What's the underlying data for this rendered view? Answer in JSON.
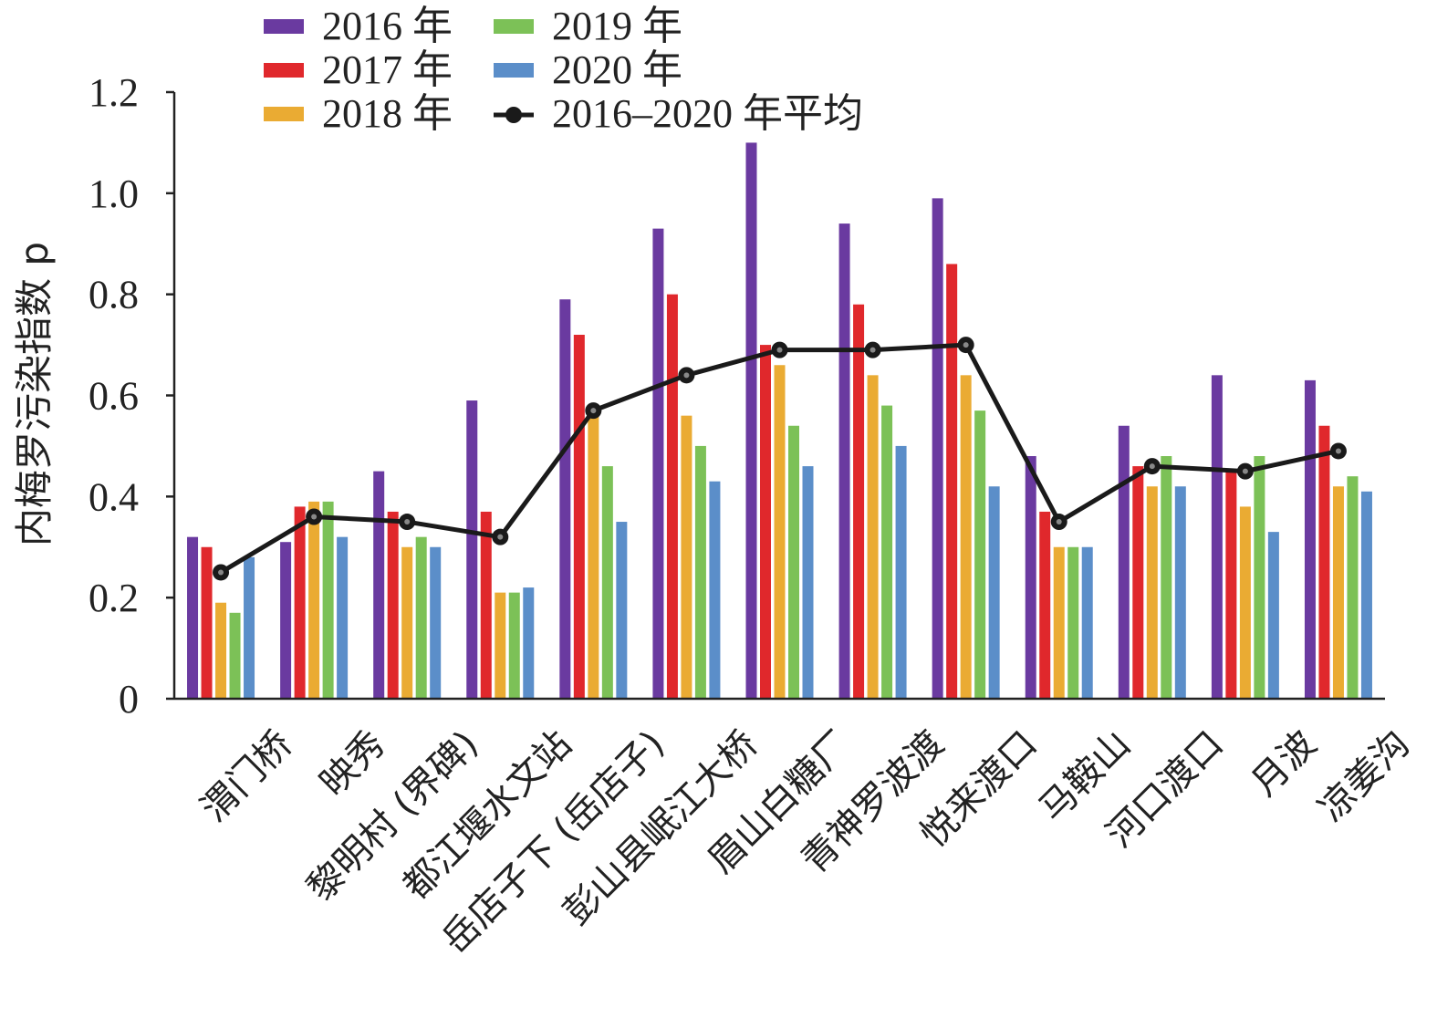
{
  "chart_data": {
    "type": "bar",
    "ylabel": "内梅罗污染指数 p",
    "ylim": [
      0,
      1.2
    ],
    "yticks": [
      "0",
      "0.2",
      "0.4",
      "0.6",
      "0.8",
      "1.0",
      "1.2"
    ],
    "categories": [
      "渭门桥",
      "映秀",
      "黎明村 (界碑)",
      "都江堰水文站",
      "岳店子下 (岳店子)",
      "彭山县岷江大桥",
      "眉山白糖厂",
      "青神罗波渡",
      "悦来渡口",
      "马鞍山",
      "河口渡口",
      "月波",
      "凉姜沟"
    ],
    "series": [
      {
        "name": "2016 年",
        "color": "#6a3aa0",
        "values": [
          0.32,
          0.31,
          0.45,
          0.59,
          0.79,
          0.93,
          1.1,
          0.94,
          0.99,
          0.48,
          0.54,
          0.64,
          0.63
        ]
      },
      {
        "name": "2017 年",
        "color": "#e0282c",
        "values": [
          0.3,
          0.38,
          0.37,
          0.37,
          0.72,
          0.8,
          0.7,
          0.78,
          0.86,
          0.37,
          0.46,
          0.45,
          0.54
        ]
      },
      {
        "name": "2018 年",
        "color": "#eaab33",
        "values": [
          0.19,
          0.39,
          0.3,
          0.21,
          0.57,
          0.56,
          0.66,
          0.64,
          0.64,
          0.3,
          0.42,
          0.38,
          0.42
        ]
      },
      {
        "name": "2019 年",
        "color": "#7cc157",
        "values": [
          0.17,
          0.39,
          0.32,
          0.21,
          0.46,
          0.5,
          0.54,
          0.58,
          0.57,
          0.3,
          0.48,
          0.48,
          0.44
        ]
      },
      {
        "name": "2020 年",
        "color": "#5b8ec9",
        "values": [
          0.28,
          0.32,
          0.3,
          0.22,
          0.35,
          0.43,
          0.46,
          0.5,
          0.42,
          0.3,
          0.42,
          0.33,
          0.41
        ]
      }
    ],
    "line_series": {
      "name": "2016–2020 年平均",
      "color": "#1a1a1a",
      "values": [
        0.25,
        0.36,
        0.35,
        0.32,
        0.57,
        0.64,
        0.69,
        0.69,
        0.7,
        0.35,
        0.46,
        0.45,
        0.49
      ]
    },
    "legend_position": "top"
  }
}
